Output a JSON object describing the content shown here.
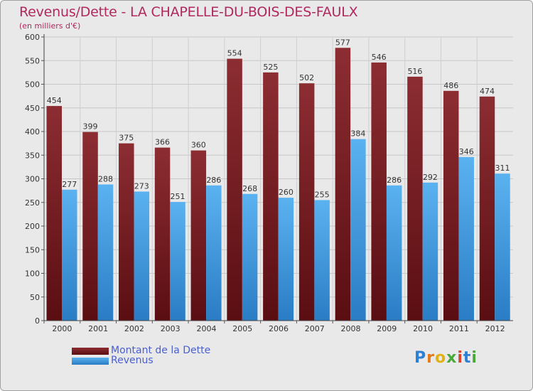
{
  "title": "Revenus/Dette - LA CHAPELLE-DU-BOIS-DES-FAULX",
  "subtitle": "(en milliers d'€)",
  "legend": [
    {
      "label": "Montant de la Dette",
      "color": "#7a1e24"
    },
    {
      "label": "Revenus",
      "color": "#3d97df"
    }
  ],
  "logo": {
    "text": "Proxiti",
    "letters": [
      "P",
      "r",
      "o",
      "x",
      "i",
      "t",
      "i"
    ],
    "colors": [
      "#2e7fd6",
      "#e07a1a",
      "#e0b21a",
      "#48a83a",
      "#d6452e",
      "#2e7fd6",
      "#48a83a"
    ]
  },
  "colors": {
    "title": "#b0285e",
    "legend_text": "#4a5fd0",
    "background": "#e9e9e9"
  },
  "chart_data": {
    "type": "bar",
    "title": "Revenus/Dette - LA CHAPELLE-DU-BOIS-DES-FAULX",
    "subtitle": "(en milliers d'€)",
    "categories": [
      "2000",
      "2001",
      "2002",
      "2003",
      "2004",
      "2005",
      "2006",
      "2007",
      "2008",
      "2009",
      "2010",
      "2011",
      "2012"
    ],
    "series": [
      {
        "name": "Montant de la Dette",
        "values": [
          454,
          399,
          375,
          366,
          360,
          554,
          525,
          502,
          577,
          546,
          516,
          486,
          474
        ]
      },
      {
        "name": "Revenus",
        "values": [
          277,
          288,
          273,
          251,
          286,
          268,
          260,
          255,
          384,
          286,
          292,
          346,
          311
        ]
      }
    ],
    "yticks": [
      0,
      50,
      100,
      150,
      200,
      250,
      300,
      350,
      400,
      450,
      500,
      550,
      600
    ],
    "ylim": [
      0,
      600
    ],
    "grid": true,
    "legend_position": "bottom-left"
  }
}
